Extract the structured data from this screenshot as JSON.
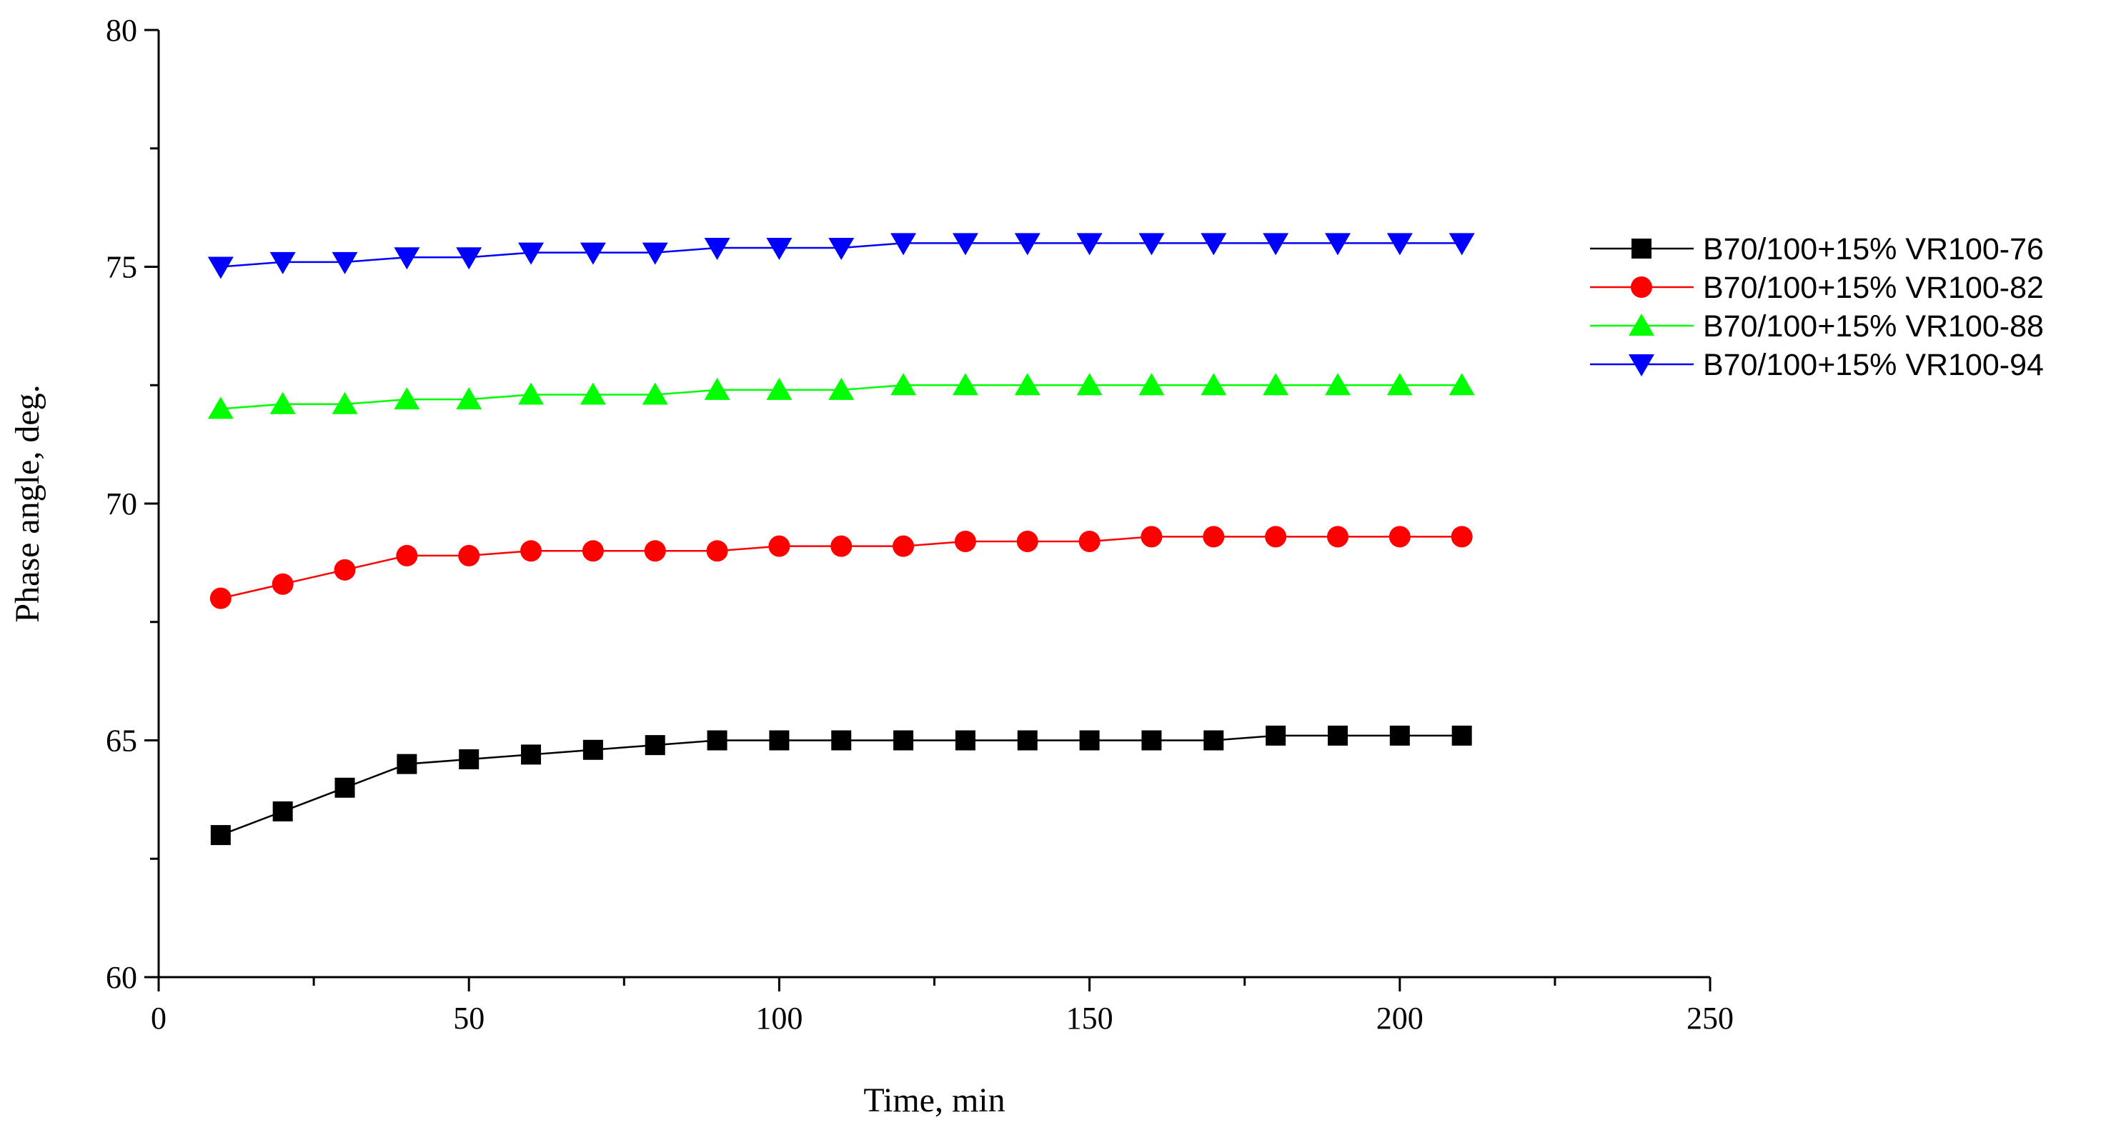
{
  "chart_data": {
    "type": "line",
    "title": "",
    "xlabel": "Time, min",
    "ylabel": "Phase angle, deg.",
    "xlim": [
      0,
      250
    ],
    "ylim": [
      60,
      80
    ],
    "xticks": [
      0,
      50,
      100,
      150,
      200,
      250
    ],
    "yticks": [
      60,
      65,
      70,
      75,
      80
    ],
    "x_minor_step": 25,
    "y_minor_step": 2.5,
    "grid": false,
    "legend_position": "right",
    "x": [
      10,
      20,
      30,
      40,
      50,
      60,
      70,
      80,
      90,
      100,
      110,
      120,
      130,
      140,
      150,
      160,
      170,
      180,
      190,
      200,
      210
    ],
    "series": [
      {
        "name": "B70/100+15% VR100-76",
        "color": "#000000",
        "marker": "square",
        "values": [
          63.0,
          63.5,
          64.0,
          64.5,
          64.6,
          64.7,
          64.8,
          64.9,
          65.0,
          65.0,
          65.0,
          65.0,
          65.0,
          65.0,
          65.0,
          65.0,
          65.0,
          65.1,
          65.1,
          65.1,
          65.1
        ]
      },
      {
        "name": "B70/100+15% VR100-82",
        "color": "#ff0000",
        "marker": "circle",
        "values": [
          68.0,
          68.3,
          68.6,
          68.9,
          68.9,
          69.0,
          69.0,
          69.0,
          69.0,
          69.1,
          69.1,
          69.1,
          69.2,
          69.2,
          69.2,
          69.3,
          69.3,
          69.3,
          69.3,
          69.3,
          69.3
        ]
      },
      {
        "name": "B70/100+15% VR100-88",
        "color": "#00ff00",
        "marker": "triangle-up",
        "values": [
          72.0,
          72.1,
          72.1,
          72.2,
          72.2,
          72.3,
          72.3,
          72.3,
          72.4,
          72.4,
          72.4,
          72.5,
          72.5,
          72.5,
          72.5,
          72.5,
          72.5,
          72.5,
          72.5,
          72.5,
          72.5
        ]
      },
      {
        "name": "B70/100+15% VR100-94",
        "color": "#0000ff",
        "marker": "triangle-down",
        "values": [
          75.0,
          75.1,
          75.1,
          75.2,
          75.2,
          75.3,
          75.3,
          75.3,
          75.4,
          75.4,
          75.4,
          75.5,
          75.5,
          75.5,
          75.5,
          75.5,
          75.5,
          75.5,
          75.5,
          75.5,
          75.5
        ]
      }
    ]
  }
}
